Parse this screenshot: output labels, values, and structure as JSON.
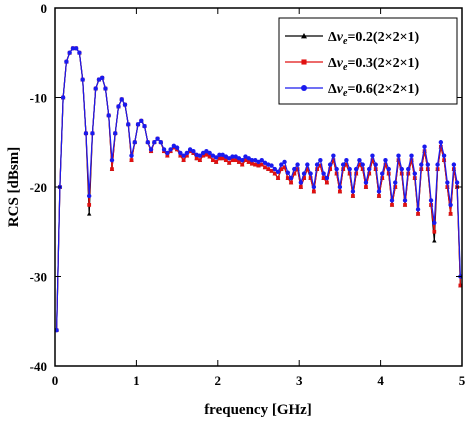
{
  "chart_data": {
    "type": "line",
    "xlabel": "frequency [GHz]",
    "ylabel": "RCS [dBsm]",
    "xlim": [
      0,
      5
    ],
    "ylim": [
      -40,
      0
    ],
    "xticks": [
      0,
      1,
      2,
      3,
      4,
      5
    ],
    "yticks": [
      0,
      -10,
      -20,
      -30,
      -40
    ],
    "grid": false,
    "legend_position": "top-right",
    "series": [
      {
        "name": "ΔNₑ=0.2(2×2×1)",
        "label_prefix": "Δ",
        "label_italic": "ν",
        "label_sub": "e",
        "label_suffix": "=0.2(2×2×1)",
        "color": "#000000",
        "marker": "triangle",
        "x": [
          0.02,
          0.06,
          0.1,
          0.14,
          0.18,
          0.22,
          0.26,
          0.3,
          0.34,
          0.38,
          0.42,
          0.46,
          0.5,
          0.54,
          0.58,
          0.62,
          0.66,
          0.7,
          0.74,
          0.78,
          0.82,
          0.86,
          0.9,
          0.94,
          0.98,
          1.02,
          1.06,
          1.1,
          1.14,
          1.18,
          1.22,
          1.26,
          1.3,
          1.34,
          1.38,
          1.42,
          1.46,
          1.5,
          1.54,
          1.58,
          1.62,
          1.66,
          1.7,
          1.74,
          1.78,
          1.82,
          1.86,
          1.9,
          1.94,
          1.98,
          2.02,
          2.06,
          2.1,
          2.14,
          2.18,
          2.22,
          2.26,
          2.3,
          2.34,
          2.38,
          2.42,
          2.46,
          2.5,
          2.54,
          2.58,
          2.62,
          2.66,
          2.7,
          2.74,
          2.78,
          2.82,
          2.86,
          2.9,
          2.94,
          2.98,
          3.02,
          3.06,
          3.1,
          3.14,
          3.18,
          3.22,
          3.26,
          3.3,
          3.34,
          3.38,
          3.42,
          3.46,
          3.5,
          3.54,
          3.58,
          3.62,
          3.66,
          3.7,
          3.74,
          3.78,
          3.82,
          3.86,
          3.9,
          3.94,
          3.98,
          4.02,
          4.06,
          4.1,
          4.14,
          4.18,
          4.22,
          4.26,
          4.3,
          4.34,
          4.38,
          4.42,
          4.46,
          4.5,
          4.54,
          4.58,
          4.62,
          4.66,
          4.7,
          4.74,
          4.78,
          4.82,
          4.86,
          4.9,
          4.94,
          4.98
        ],
        "y": [
          -36,
          -20,
          -10,
          -6,
          -5,
          -4.5,
          -4.5,
          -5,
          -8,
          -14,
          -23,
          -14,
          -9,
          -8,
          -7.8,
          -9,
          -12,
          -18,
          -14,
          -11,
          -10.2,
          -10.8,
          -13,
          -17,
          -15,
          -13,
          -12.6,
          -13.2,
          -15,
          -16,
          -15,
          -14.6,
          -15,
          -16,
          -16.5,
          -16,
          -15.6,
          -15.8,
          -16.5,
          -17,
          -16.5,
          -16,
          -16.2,
          -16.8,
          -17,
          -16.5,
          -16.4,
          -16.6,
          -17,
          -17.2,
          -16.8,
          -16.8,
          -17,
          -17.3,
          -17,
          -17,
          -17.2,
          -17.5,
          -17,
          -17.2,
          -17.4,
          -17.5,
          -17.6,
          -17.5,
          -17.8,
          -18,
          -18.2,
          -18.5,
          -19,
          -18,
          -17.8,
          -19,
          -19.5,
          -18.5,
          -18,
          -20,
          -19,
          -18,
          -19,
          -20.5,
          -18,
          -17.6,
          -19,
          -19.5,
          -18,
          -17,
          -18.5,
          -20.5,
          -18,
          -17.5,
          -18.5,
          -21,
          -18.5,
          -17.5,
          -18,
          -20,
          -18.5,
          -17,
          -18,
          -21,
          -19,
          -17.5,
          -18.5,
          -22,
          -20,
          -17,
          -18.5,
          -22,
          -18.5,
          -17,
          -19,
          -23,
          -18,
          -16,
          -18,
          -22,
          -26,
          -18,
          -15.5,
          -17,
          -20,
          -23,
          -18,
          -20,
          -31
        ]
      },
      {
        "name": "ΔNₑ=0.3(2×2×1)",
        "label_prefix": "Δ",
        "label_italic": "ν",
        "label_sub": "e",
        "label_suffix": "=0.3(2×2×1)",
        "color": "#e01010",
        "marker": "square",
        "x": [
          0.02,
          0.06,
          0.1,
          0.14,
          0.18,
          0.22,
          0.26,
          0.3,
          0.34,
          0.38,
          0.42,
          0.46,
          0.5,
          0.54,
          0.58,
          0.62,
          0.66,
          0.7,
          0.74,
          0.78,
          0.82,
          0.86,
          0.9,
          0.94,
          0.98,
          1.02,
          1.06,
          1.1,
          1.14,
          1.18,
          1.22,
          1.26,
          1.3,
          1.34,
          1.38,
          1.42,
          1.46,
          1.5,
          1.54,
          1.58,
          1.62,
          1.66,
          1.7,
          1.74,
          1.78,
          1.82,
          1.86,
          1.9,
          1.94,
          1.98,
          2.02,
          2.06,
          2.1,
          2.14,
          2.18,
          2.22,
          2.26,
          2.3,
          2.34,
          2.38,
          2.42,
          2.46,
          2.5,
          2.54,
          2.58,
          2.62,
          2.66,
          2.7,
          2.74,
          2.78,
          2.82,
          2.86,
          2.9,
          2.94,
          2.98,
          3.02,
          3.06,
          3.1,
          3.14,
          3.18,
          3.22,
          3.26,
          3.3,
          3.34,
          3.38,
          3.42,
          3.46,
          3.5,
          3.54,
          3.58,
          3.62,
          3.66,
          3.7,
          3.74,
          3.78,
          3.82,
          3.86,
          3.9,
          3.94,
          3.98,
          4.02,
          4.06,
          4.1,
          4.14,
          4.18,
          4.22,
          4.26,
          4.3,
          4.34,
          4.38,
          4.42,
          4.46,
          4.5,
          4.54,
          4.58,
          4.62,
          4.66,
          4.7,
          4.74,
          4.78,
          4.82,
          4.86,
          4.9,
          4.94,
          4.98
        ],
        "y": [
          -36,
          -20,
          -10,
          -6,
          -5,
          -4.5,
          -4.5,
          -5,
          -8,
          -14,
          -22,
          -14,
          -9,
          -8,
          -7.8,
          -9,
          -12,
          -18,
          -14,
          -11,
          -10.2,
          -10.8,
          -13,
          -17,
          -15,
          -13,
          -12.6,
          -13.2,
          -15,
          -16,
          -15,
          -14.6,
          -15,
          -16,
          -16.5,
          -16,
          -15.6,
          -15.8,
          -16.5,
          -17,
          -16.5,
          -16,
          -16.2,
          -16.8,
          -17,
          -16.5,
          -16.4,
          -16.6,
          -17,
          -17.2,
          -16.8,
          -16.8,
          -17,
          -17.3,
          -17,
          -17,
          -17.2,
          -17.5,
          -17,
          -17.2,
          -17.4,
          -17.5,
          -17.6,
          -17.5,
          -17.8,
          -18,
          -18.2,
          -18.5,
          -19,
          -18,
          -17.8,
          -19,
          -19.5,
          -18.5,
          -18,
          -20,
          -19,
          -18,
          -19,
          -20.5,
          -18,
          -17.6,
          -19,
          -19.5,
          -18,
          -17,
          -18.5,
          -20.5,
          -18,
          -17.5,
          -18.5,
          -21,
          -18.5,
          -17.5,
          -18,
          -20,
          -18.5,
          -17,
          -18,
          -21,
          -19,
          -17.5,
          -18.5,
          -22,
          -20,
          -17,
          -18.5,
          -22,
          -18.5,
          -17,
          -19,
          -23,
          -18,
          -16,
          -18,
          -22,
          -25,
          -18,
          -15.5,
          -17,
          -20,
          -23,
          -18,
          -20,
          -31
        ]
      },
      {
        "name": "ΔNₑ=0.6(2×2×1)",
        "label_prefix": "Δ",
        "label_italic": "ν",
        "label_sub": "e",
        "label_suffix": "=0.6(2×2×1)",
        "color": "#1a1aee",
        "marker": "circle",
        "x": [
          0.02,
          0.06,
          0.1,
          0.14,
          0.18,
          0.22,
          0.26,
          0.3,
          0.34,
          0.38,
          0.42,
          0.46,
          0.5,
          0.54,
          0.58,
          0.62,
          0.66,
          0.7,
          0.74,
          0.78,
          0.82,
          0.86,
          0.9,
          0.94,
          0.98,
          1.02,
          1.06,
          1.1,
          1.14,
          1.18,
          1.22,
          1.26,
          1.3,
          1.34,
          1.38,
          1.42,
          1.46,
          1.5,
          1.54,
          1.58,
          1.62,
          1.66,
          1.7,
          1.74,
          1.78,
          1.82,
          1.86,
          1.9,
          1.94,
          1.98,
          2.02,
          2.06,
          2.1,
          2.14,
          2.18,
          2.22,
          2.26,
          2.3,
          2.34,
          2.38,
          2.42,
          2.46,
          2.5,
          2.54,
          2.58,
          2.62,
          2.66,
          2.7,
          2.74,
          2.78,
          2.82,
          2.86,
          2.9,
          2.94,
          2.98,
          3.02,
          3.06,
          3.1,
          3.14,
          3.18,
          3.22,
          3.26,
          3.3,
          3.34,
          3.38,
          3.42,
          3.46,
          3.5,
          3.54,
          3.58,
          3.62,
          3.66,
          3.7,
          3.74,
          3.78,
          3.82,
          3.86,
          3.9,
          3.94,
          3.98,
          4.02,
          4.06,
          4.1,
          4.14,
          4.18,
          4.22,
          4.26,
          4.3,
          4.34,
          4.38,
          4.42,
          4.46,
          4.5,
          4.54,
          4.58,
          4.62,
          4.66,
          4.7,
          4.74,
          4.78,
          4.82,
          4.86,
          4.9,
          4.94,
          4.98
        ],
        "y": [
          -36,
          -20,
          -10,
          -6,
          -5,
          -4.5,
          -4.5,
          -5,
          -8,
          -14,
          -21,
          -14,
          -9,
          -8,
          -7.8,
          -9,
          -12,
          -17,
          -14,
          -11,
          -10.2,
          -10.8,
          -13,
          -16.5,
          -15,
          -13,
          -12.6,
          -13.2,
          -15,
          -15.8,
          -15,
          -14.6,
          -15,
          -15.8,
          -16.2,
          -15.8,
          -15.4,
          -15.6,
          -16.2,
          -16.5,
          -16.2,
          -15.8,
          -16,
          -16.4,
          -16.5,
          -16.2,
          -16,
          -16.2,
          -16.5,
          -16.7,
          -16.4,
          -16.4,
          -16.6,
          -16.8,
          -16.6,
          -16.6,
          -16.8,
          -17,
          -16.6,
          -16.8,
          -17,
          -17,
          -17.2,
          -17,
          -17.3,
          -17.5,
          -17.6,
          -18,
          -18.3,
          -17.5,
          -17.2,
          -18.4,
          -19,
          -18,
          -17.5,
          -19.5,
          -18.5,
          -17.5,
          -18.5,
          -20,
          -17.5,
          -17,
          -18.5,
          -19,
          -17.5,
          -16.5,
          -18,
          -20,
          -17.5,
          -17,
          -18,
          -20.5,
          -18,
          -17,
          -17.5,
          -19.5,
          -18,
          -16.5,
          -17.5,
          -20.5,
          -18.5,
          -17,
          -18,
          -21.5,
          -19.5,
          -16.5,
          -18,
          -21.5,
          -18,
          -16.5,
          -18.5,
          -22.5,
          -17.5,
          -15.5,
          -17.5,
          -21.5,
          -24,
          -17.5,
          -15,
          -16.5,
          -19.5,
          -22,
          -17.5,
          -19.5,
          -30
        ]
      }
    ]
  }
}
